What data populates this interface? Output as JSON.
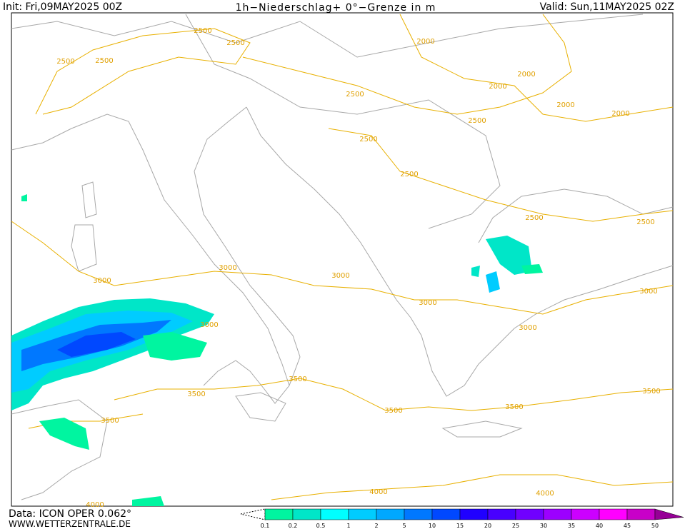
{
  "header": {
    "init": "Init: Fri,09MAY2025 00Z",
    "title": "1h−Niederschlag+ 0°−Grenze in m",
    "valid": "Valid: Sun,11MAY2025 02Z"
  },
  "contour_labels": [
    "2500",
    "2500",
    "2500",
    "2500",
    "2000",
    "2000",
    "2000",
    "2000",
    "2000",
    "2500",
    "2500",
    "2500",
    "2500",
    "2500",
    "2500",
    "3000",
    "3000",
    "3000",
    "3000",
    "3000",
    "3000",
    "3000",
    "3500",
    "3500",
    "3500",
    "3500",
    "3500",
    "3500",
    "4000",
    "4000",
    "4000"
  ],
  "footer": {
    "data": "Data: ICON OPER 0.062°",
    "site": "WWW.WETTERZENTRALE.DE"
  },
  "legend": {
    "levels": [
      0.1,
      0.2,
      0.5,
      1,
      2,
      5,
      10,
      15,
      20,
      25,
      30,
      35,
      40,
      45,
      50
    ],
    "colors": [
      "#00f5a0",
      "#00e6c8",
      "#00ffff",
      "#00ccff",
      "#00a8ff",
      "#0078ff",
      "#0048ff",
      "#2000ff",
      "#4800ff",
      "#7000ff",
      "#9c00ff",
      "#cc00ff",
      "#ff00ff",
      "#c800c8",
      "#960096"
    ]
  }
}
